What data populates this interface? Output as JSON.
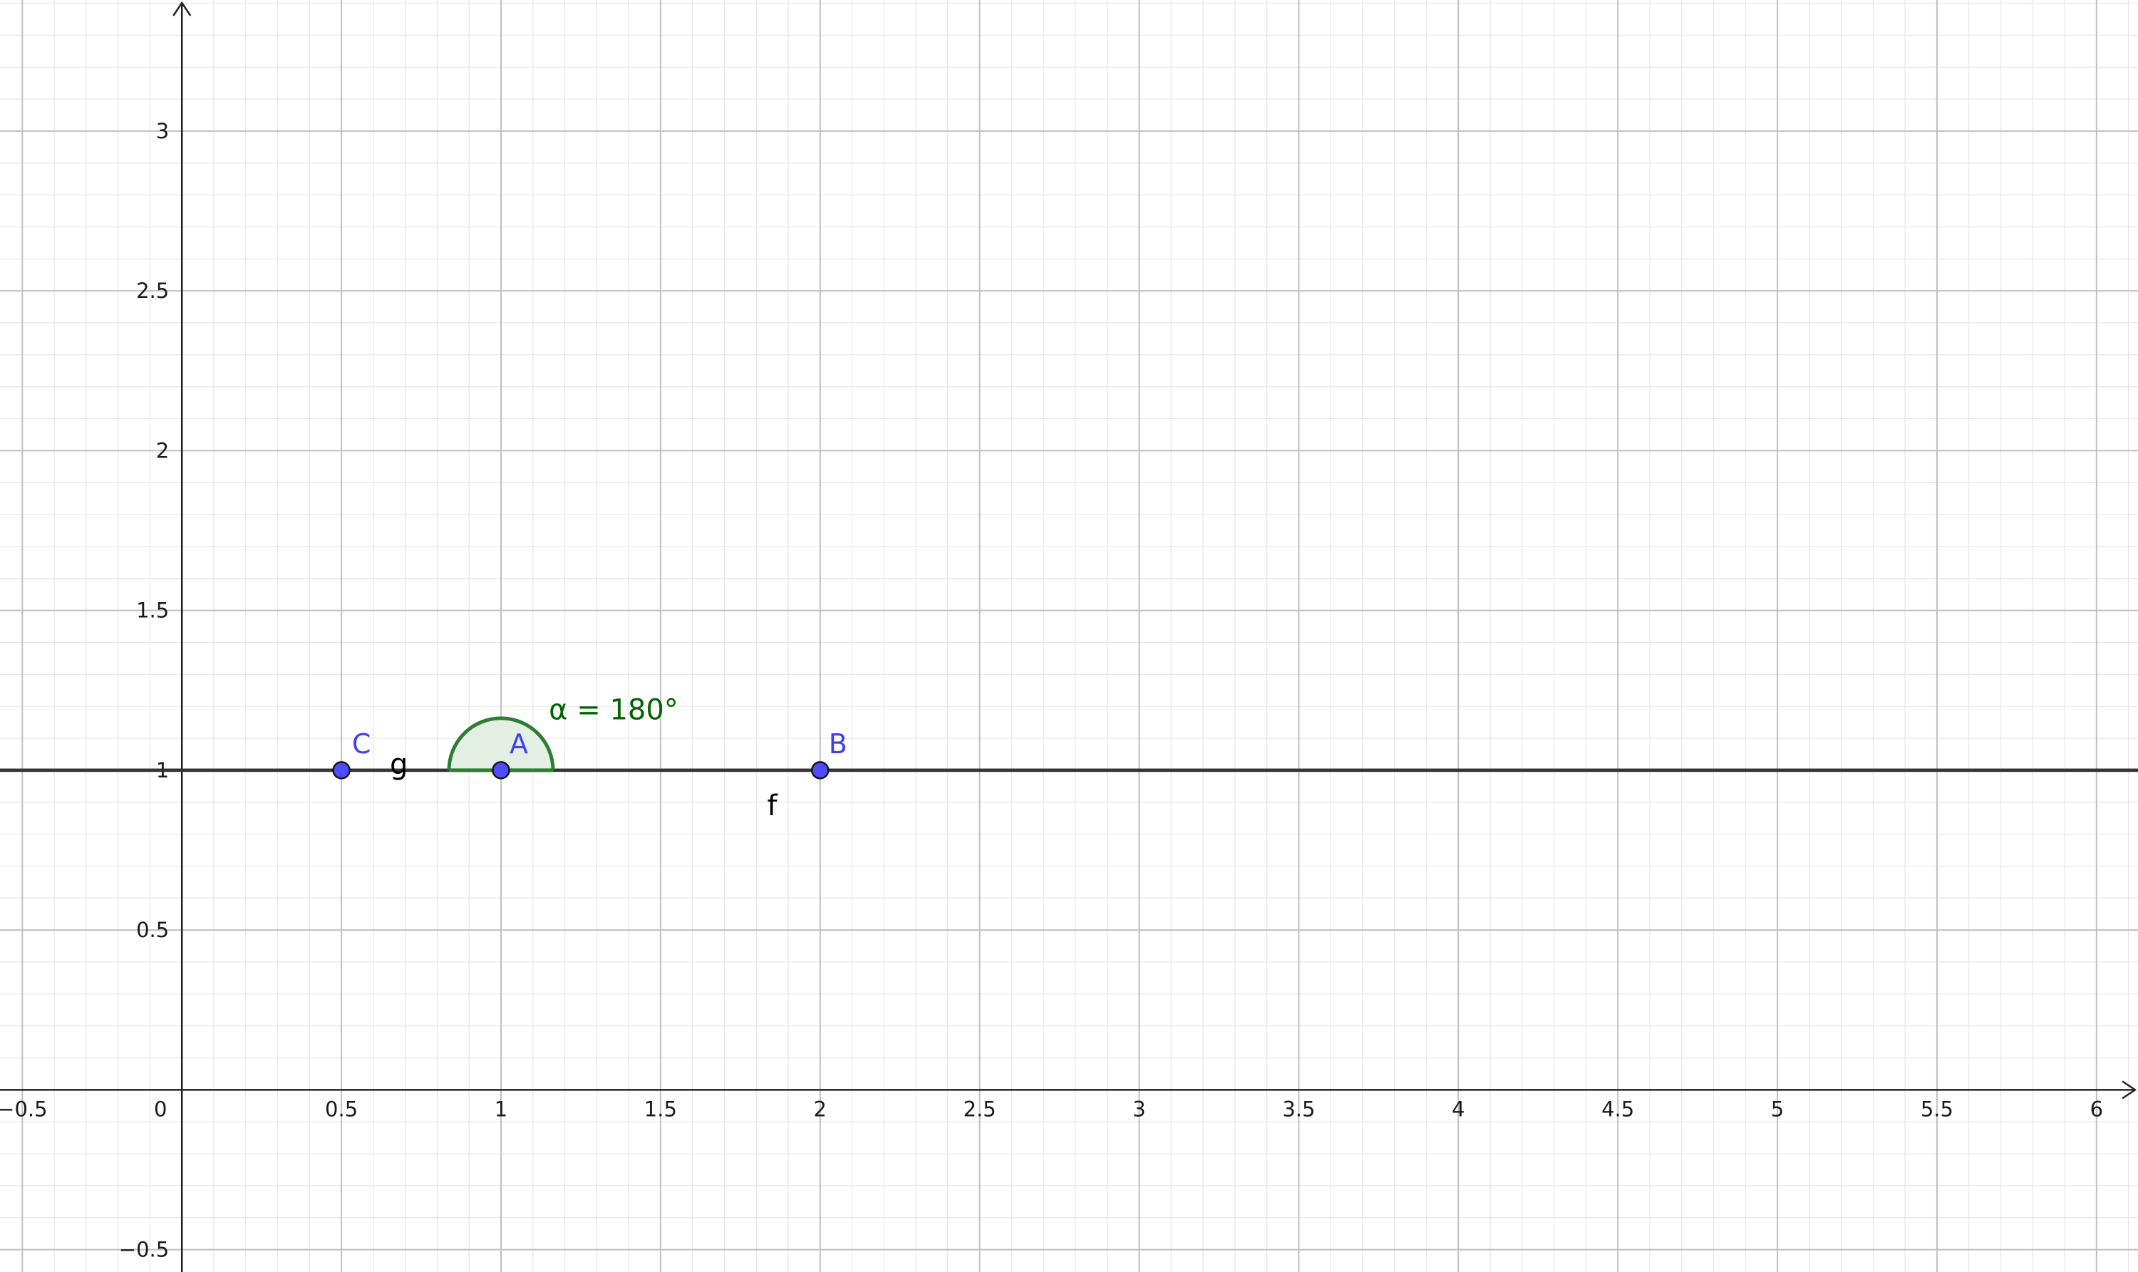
{
  "app": "GeoGebra Graphics View",
  "axes": {
    "x_range": [
      -0.57,
      6.13
    ],
    "y_range": [
      -0.57,
      3.41
    ],
    "major_step": 0.5,
    "minor_step": 0.1,
    "grid": true,
    "x_tick_labels": [
      "−0.5",
      "0",
      "0.5",
      "1",
      "1.5",
      "2",
      "2.5",
      "3",
      "3.5",
      "4",
      "4.5",
      "5",
      "5.5",
      "6"
    ],
    "y_tick_labels": [
      "−0.5",
      "0.5",
      "1",
      "1.5",
      "2",
      "2.5",
      "3"
    ]
  },
  "colors": {
    "grid_major": "#c0c0c0",
    "grid_minor": "#e6e6e6",
    "axis": "#222222",
    "line": "#333333",
    "point_fill": "#4d4dff",
    "point_stroke": "#151515",
    "point_label": "#4040ee",
    "angle": "#2e7d32",
    "angle_fill": "#e3efe3",
    "angle_label": "#006400",
    "object_label": "#000000"
  },
  "points": [
    {
      "name": "C",
      "x": 0.5,
      "y": 1
    },
    {
      "name": "A",
      "x": 1,
      "y": 1
    },
    {
      "name": "B",
      "x": 2,
      "y": 1
    }
  ],
  "lines": [
    {
      "name": "g",
      "through": [
        "C",
        "A"
      ]
    },
    {
      "name": "f",
      "through": [
        "A",
        "B"
      ]
    }
  ],
  "angle": {
    "name": "α",
    "vertex": "A",
    "value_deg": 180,
    "label": "α = 180°"
  }
}
